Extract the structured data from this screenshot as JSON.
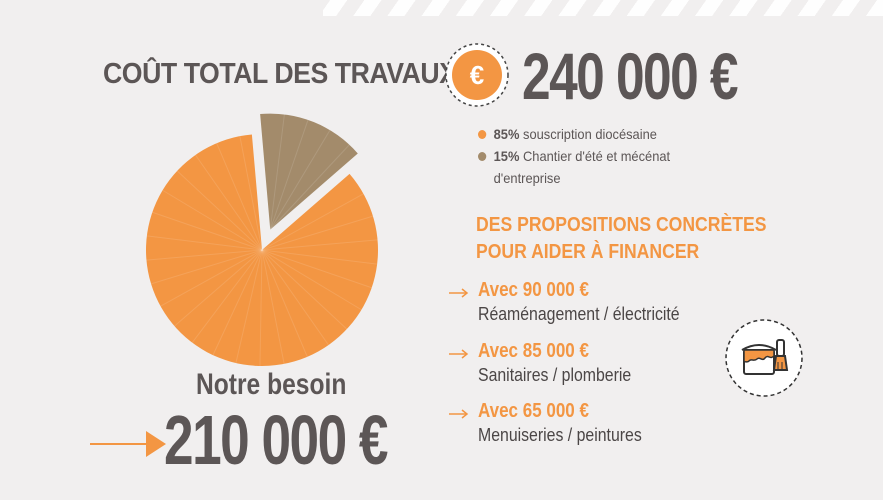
{
  "header": {
    "title": "COÛT TOTAL DES TRAVAUX",
    "total_amount": "240 000 €",
    "euro_icon": "euro-icon"
  },
  "legend": [
    {
      "percent": "85%",
      "label": "souscription diocésaine",
      "color": "#f39643"
    },
    {
      "percent": "15%",
      "label": "Chantier d'été et mécénat",
      "label_line2": "d'entreprise",
      "color": "#a38b6b"
    }
  ],
  "pie_data": {
    "type": "pie",
    "slices": [
      {
        "label": "souscription diocésaine",
        "value": 85,
        "color": "#f39643"
      },
      {
        "label": "Chantier d'été et mécénat d'entreprise",
        "value": 15,
        "color": "#a38b6b"
      }
    ]
  },
  "proposals": {
    "title_line1": "DES PROPOSITIONS CONCRÈTES",
    "title_line2": "POUR AIDER À FINANCER",
    "items": [
      {
        "amount": "Avec 90 000 €",
        "description": "Réaménagement / électricité"
      },
      {
        "amount": "Avec 85 000 €",
        "description": "Sanitaires / plomberie"
      },
      {
        "amount": "Avec 65 000 €",
        "description": "Menuiseries / peintures"
      }
    ],
    "icon": "paint-bucket-brush-icon"
  },
  "need": {
    "label": "Notre besoin",
    "amount": "210 000 €"
  },
  "colors": {
    "accent": "#f39643",
    "secondary": "#a38b6b",
    "text": "#5c5656",
    "background": "#f1efef"
  }
}
